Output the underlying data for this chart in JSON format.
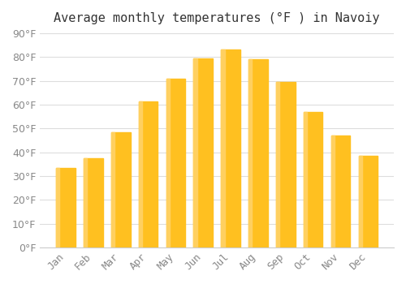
{
  "title": "Average monthly temperatures (°F ) in Navoiy",
  "months": [
    "Jan",
    "Feb",
    "Mar",
    "Apr",
    "May",
    "Jun",
    "Jul",
    "Aug",
    "Sep",
    "Oct",
    "Nov",
    "Dec"
  ],
  "values": [
    33.5,
    37.5,
    48.5,
    61.5,
    71.0,
    79.5,
    83.0,
    79.0,
    69.5,
    57.0,
    47.0,
    38.5
  ],
  "bar_color_face": "#FFC020",
  "bar_color_edge": "#FFD060",
  "background_color": "#FFFFFF",
  "grid_color": "#DDDDDD",
  "text_color": "#888888",
  "ylim": [
    0,
    90
  ],
  "yticks": [
    0,
    10,
    20,
    30,
    40,
    50,
    60,
    70,
    80,
    90
  ],
  "title_fontsize": 11,
  "tick_fontsize": 9
}
